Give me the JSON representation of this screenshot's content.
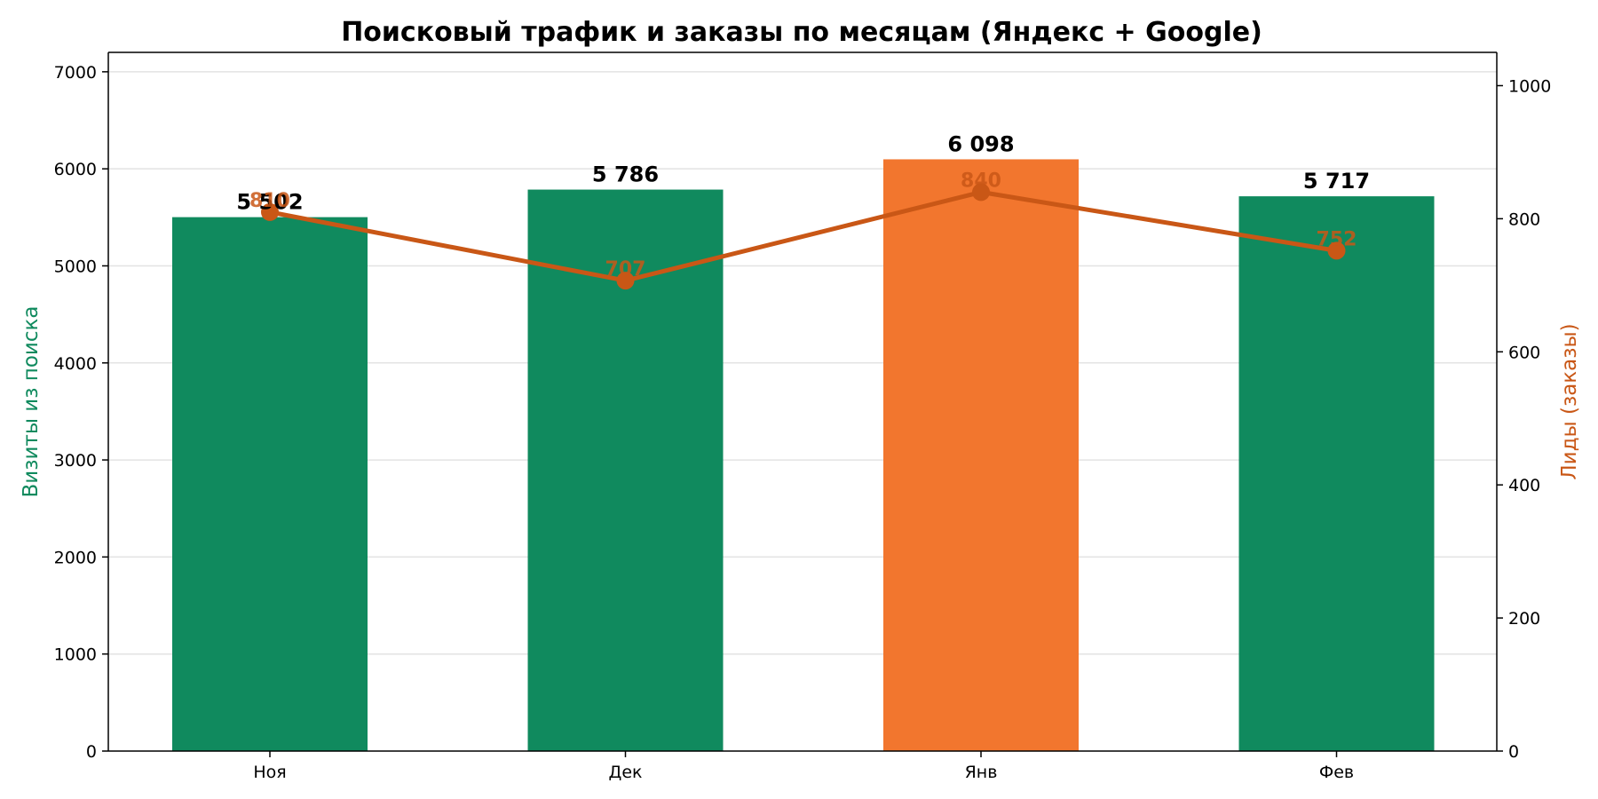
{
  "chart_data": {
    "type": "bar",
    "title": "Поисковый трафик и заказы по месяцам (Яндекс + Google)",
    "categories": [
      "Ноя",
      "Дек",
      "Янв",
      "Фев"
    ],
    "series": [
      {
        "axis": "left",
        "kind": "bar",
        "values": [
          5502,
          5786,
          6098,
          5717
        ],
        "value_labels": [
          "5 502",
          "5 786",
          "6 098",
          "5 717"
        ],
        "colors": [
          "#108a5e",
          "#108a5e",
          "#f2762e",
          "#108a5e"
        ]
      },
      {
        "axis": "right",
        "kind": "line",
        "values": [
          810,
          707,
          840,
          752
        ],
        "value_labels": [
          "810",
          "707",
          "840",
          "752"
        ],
        "color": "#c95716"
      }
    ],
    "ylabel": "Визиты из поиска",
    "ylabel_color": "#108a5e",
    "y2label": "Лиды (заказы)",
    "y2label_color": "#c95716",
    "ylim": [
      0,
      7200
    ],
    "y2lim": [
      0,
      1050
    ],
    "yticks": [
      0,
      1000,
      2000,
      3000,
      4000,
      5000,
      6000,
      7000
    ],
    "y2ticks": [
      0,
      200,
      400,
      600,
      800,
      1000
    ],
    "grid": true,
    "legend": "none"
  }
}
